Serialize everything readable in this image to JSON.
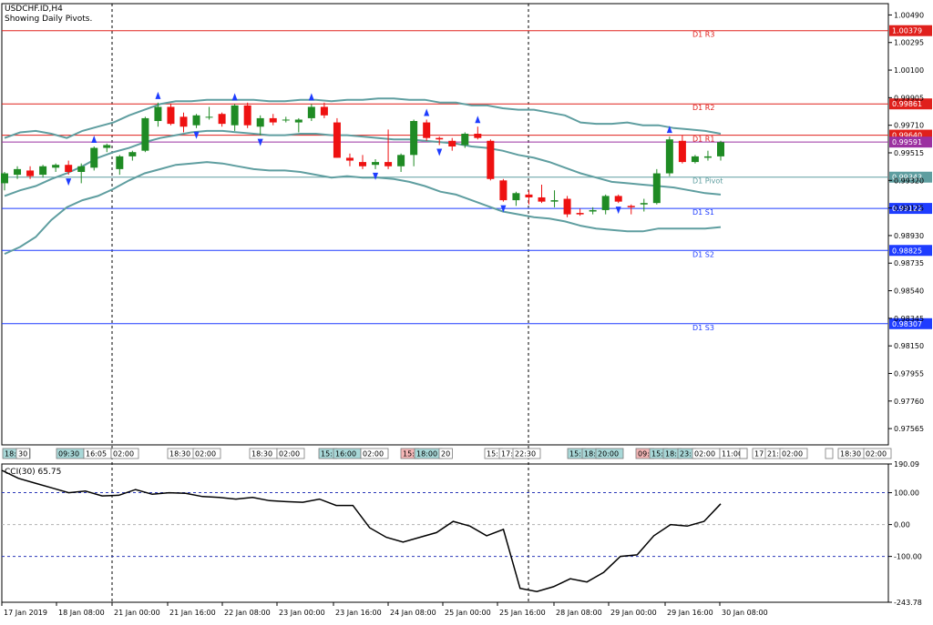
{
  "chart_data": {
    "type": "candlestick",
    "symbol_title": "USDCHF.ID,H4",
    "subtitle": "Showing Daily Pivots.",
    "price_axis_ticks": [
      "1.00490",
      "1.00295",
      "1.00100",
      "0.99905",
      "0.99710",
      "0.99515",
      "0.99320",
      "0.99125",
      "0.98930",
      "0.98735",
      "0.98540",
      "0.98345",
      "0.98150",
      "0.97955",
      "0.97760",
      "0.97565"
    ],
    "price_ylim": [
      0.9745,
      1.0057
    ],
    "pivots": [
      {
        "name": "D1 R3",
        "price": 1.00379,
        "label": "1.00379",
        "color": "#e0201c"
      },
      {
        "name": "D1 R2",
        "price": 0.99861,
        "label": "0.99861",
        "color": "#e0201c"
      },
      {
        "name": "D1 R1",
        "price": 0.9964,
        "label": "0.99640",
        "color": "#e0201c"
      },
      {
        "name": "D1 Pivot",
        "price": 0.99343,
        "label": "0.99343",
        "color": "#5f9ea0"
      },
      {
        "name": "D1 S1",
        "price": 0.99122,
        "label": "0.99122",
        "color": "#1e3cff"
      },
      {
        "name": "D1 S2",
        "price": 0.98825,
        "label": "0.98825",
        "color": "#1e3cff"
      },
      {
        "name": "D1 S3",
        "price": 0.98307,
        "label": "0.98307",
        "color": "#1e3cff"
      }
    ],
    "current_price": {
      "price": 0.99591,
      "label": "0.99591",
      "color": "#9b30a0"
    },
    "candles": [
      {
        "o": 0.993,
        "h": 0.9938,
        "l": 0.9925,
        "c": 0.9937
      },
      {
        "o": 0.9936,
        "h": 0.9942,
        "l": 0.9933,
        "c": 0.994
      },
      {
        "o": 0.9939,
        "h": 0.9942,
        "l": 0.9933,
        "c": 0.9935
      },
      {
        "o": 0.9936,
        "h": 0.9943,
        "l": 0.9934,
        "c": 0.9942
      },
      {
        "o": 0.9941,
        "h": 0.9944,
        "l": 0.9938,
        "c": 0.9943
      },
      {
        "o": 0.9943,
        "h": 0.9946,
        "l": 0.9936,
        "c": 0.9938
      },
      {
        "o": 0.9938,
        "h": 0.9944,
        "l": 0.993,
        "c": 0.9942
      },
      {
        "o": 0.9941,
        "h": 0.9956,
        "l": 0.9939,
        "c": 0.9955
      },
      {
        "o": 0.9955,
        "h": 0.9958,
        "l": 0.9952,
        "c": 0.9957
      },
      {
        "o": 0.994,
        "h": 0.995,
        "l": 0.9936,
        "c": 0.9949
      },
      {
        "o": 0.9949,
        "h": 0.9953,
        "l": 0.9946,
        "c": 0.9952
      },
      {
        "o": 0.9953,
        "h": 0.9977,
        "l": 0.9952,
        "c": 0.9976
      },
      {
        "o": 0.9974,
        "h": 0.9987,
        "l": 0.997,
        "c": 0.9984
      },
      {
        "o": 0.9984,
        "h": 0.9986,
        "l": 0.9971,
        "c": 0.9972
      },
      {
        "o": 0.9977,
        "h": 0.998,
        "l": 0.9966,
        "c": 0.997
      },
      {
        "o": 0.9971,
        "h": 0.9979,
        "l": 0.9969,
        "c": 0.9978
      },
      {
        "o": 0.9977,
        "h": 0.9984,
        "l": 0.9975,
        "c": 0.9977
      },
      {
        "o": 0.9979,
        "h": 0.998,
        "l": 0.997,
        "c": 0.9972
      },
      {
        "o": 0.9971,
        "h": 0.9986,
        "l": 0.9967,
        "c": 0.9985
      },
      {
        "o": 0.9985,
        "h": 0.9987,
        "l": 0.9969,
        "c": 0.9971
      },
      {
        "o": 0.997,
        "h": 0.9978,
        "l": 0.9964,
        "c": 0.9976
      },
      {
        "o": 0.9976,
        "h": 0.9979,
        "l": 0.9971,
        "c": 0.9973
      },
      {
        "o": 0.9975,
        "h": 0.9977,
        "l": 0.9973,
        "c": 0.9975
      },
      {
        "o": 0.9973,
        "h": 0.9976,
        "l": 0.9966,
        "c": 0.9975
      },
      {
        "o": 0.9976,
        "h": 0.9986,
        "l": 0.9974,
        "c": 0.9984
      },
      {
        "o": 0.9984,
        "h": 0.9987,
        "l": 0.9976,
        "c": 0.9978
      },
      {
        "o": 0.9973,
        "h": 0.9976,
        "l": 0.9948,
        "c": 0.9948
      },
      {
        "o": 0.9948,
        "h": 0.9951,
        "l": 0.9942,
        "c": 0.9946
      },
      {
        "o": 0.9945,
        "h": 0.995,
        "l": 0.994,
        "c": 0.9942
      },
      {
        "o": 0.9943,
        "h": 0.9947,
        "l": 0.994,
        "c": 0.9945
      },
      {
        "o": 0.9945,
        "h": 0.9968,
        "l": 0.994,
        "c": 0.9942
      },
      {
        "o": 0.9942,
        "h": 0.9951,
        "l": 0.9938,
        "c": 0.995
      },
      {
        "o": 0.995,
        "h": 0.9975,
        "l": 0.9942,
        "c": 0.9974
      },
      {
        "o": 0.9973,
        "h": 0.9975,
        "l": 0.996,
        "c": 0.9962
      },
      {
        "o": 0.9962,
        "h": 0.9963,
        "l": 0.9957,
        "c": 0.9961
      },
      {
        "o": 0.996,
        "h": 0.9962,
        "l": 0.9953,
        "c": 0.9956
      },
      {
        "o": 0.9957,
        "h": 0.9966,
        "l": 0.9955,
        "c": 0.9965
      },
      {
        "o": 0.9965,
        "h": 0.997,
        "l": 0.9961,
        "c": 0.9962
      },
      {
        "o": 0.996,
        "h": 0.9961,
        "l": 0.9932,
        "c": 0.9933
      },
      {
        "o": 0.9932,
        "h": 0.9933,
        "l": 0.9917,
        "c": 0.9918
      },
      {
        "o": 0.9918,
        "h": 0.9924,
        "l": 0.9914,
        "c": 0.9923
      },
      {
        "o": 0.9922,
        "h": 0.9925,
        "l": 0.9915,
        "c": 0.992
      },
      {
        "o": 0.992,
        "h": 0.9929,
        "l": 0.9916,
        "c": 0.9917
      },
      {
        "o": 0.9917,
        "h": 0.9925,
        "l": 0.9913,
        "c": 0.9918
      },
      {
        "o": 0.9919,
        "h": 0.9921,
        "l": 0.9906,
        "c": 0.9908
      },
      {
        "o": 0.9909,
        "h": 0.9912,
        "l": 0.9907,
        "c": 0.9908
      },
      {
        "o": 0.991,
        "h": 0.9913,
        "l": 0.9908,
        "c": 0.9911
      },
      {
        "o": 0.9911,
        "h": 0.9922,
        "l": 0.9908,
        "c": 0.9921
      },
      {
        "o": 0.9921,
        "h": 0.9922,
        "l": 0.9916,
        "c": 0.9917
      },
      {
        "o": 0.9914,
        "h": 0.9915,
        "l": 0.9908,
        "c": 0.9913
      },
      {
        "o": 0.9915,
        "h": 0.9919,
        "l": 0.991,
        "c": 0.9916
      },
      {
        "o": 0.9916,
        "h": 0.994,
        "l": 0.9915,
        "c": 0.9937
      },
      {
        "o": 0.9937,
        "h": 0.9963,
        "l": 0.9935,
        "c": 0.9961
      },
      {
        "o": 0.996,
        "h": 0.9964,
        "l": 0.9944,
        "c": 0.9945
      },
      {
        "o": 0.9945,
        "h": 0.995,
        "l": 0.9944,
        "c": 0.9949
      },
      {
        "o": 0.9948,
        "h": 0.9953,
        "l": 0.9946,
        "c": 0.9949
      },
      {
        "o": 0.9949,
        "h": 0.996,
        "l": 0.9946,
        "c": 0.9959
      }
    ],
    "bollinger_upper": [
      0.9962,
      0.9966,
      0.9967,
      0.9965,
      0.9962,
      0.9967,
      0.997,
      0.9973,
      0.9978,
      0.9982,
      0.9986,
      0.9988,
      0.9988,
      0.9989,
      0.9989,
      0.9989,
      0.9989,
      0.9988,
      0.9988,
      0.9989,
      0.9989,
      0.9988,
      0.9989,
      0.9989,
      0.999,
      0.999,
      0.9989,
      0.9989,
      0.9987,
      0.9987,
      0.9985,
      0.9985,
      0.9983,
      0.9982,
      0.9982,
      0.998,
      0.9978,
      0.9973,
      0.9972,
      0.9972,
      0.9973,
      0.9971,
      0.9971,
      0.9969,
      0.9968,
      0.9967,
      0.9965
    ],
    "bollinger_middle": [
      0.9921,
      0.9925,
      0.9928,
      0.9933,
      0.9937,
      0.9942,
      0.9948,
      0.9952,
      0.9955,
      0.9959,
      0.9962,
      0.9964,
      0.9966,
      0.9967,
      0.9967,
      0.9966,
      0.9965,
      0.9964,
      0.9964,
      0.9965,
      0.9965,
      0.9964,
      0.9964,
      0.9963,
      0.9962,
      0.9961,
      0.9961,
      0.996,
      0.9959,
      0.9958,
      0.9956,
      0.9955,
      0.9953,
      0.995,
      0.9948,
      0.9945,
      0.9941,
      0.9937,
      0.9934,
      0.9931,
      0.993,
      0.9929,
      0.9928,
      0.9927,
      0.9925,
      0.9923,
      0.9922
    ],
    "bollinger_lower": [
      0.988,
      0.9885,
      0.9892,
      0.9904,
      0.9913,
      0.9918,
      0.9921,
      0.9926,
      0.9932,
      0.9937,
      0.994,
      0.9943,
      0.9944,
      0.9945,
      0.9944,
      0.9942,
      0.994,
      0.9939,
      0.9939,
      0.9938,
      0.9936,
      0.9934,
      0.9935,
      0.9934,
      0.9934,
      0.9933,
      0.9931,
      0.9928,
      0.9924,
      0.9922,
      0.9918,
      0.9914,
      0.991,
      0.9908,
      0.9906,
      0.9905,
      0.9903,
      0.99,
      0.9898,
      0.9897,
      0.9896,
      0.9896,
      0.9898,
      0.9898,
      0.9898,
      0.9898,
      0.9899
    ],
    "time_tags": [
      {
        "text": "18:30",
        "style": "teal"
      },
      {
        "text": "30",
        "style": "plain"
      },
      {
        "text": "09:30",
        "style": "teal"
      },
      {
        "text": "16:05",
        "style": "plain"
      },
      {
        "text": "02:00",
        "style": "plain"
      },
      {
        "text": "18:30",
        "style": "plain"
      },
      {
        "text": "02:00",
        "style": "plain"
      },
      {
        "text": "18:30",
        "style": "plain"
      },
      {
        "text": "02:00",
        "style": "plain"
      },
      {
        "text": "15:",
        "style": "teal"
      },
      {
        "text": "16:00",
        "style": "teal"
      },
      {
        "text": "02:00",
        "style": "plain"
      },
      {
        "text": "15:",
        "style": "red"
      },
      {
        "text": "18:00",
        "style": "teal"
      },
      {
        "text": "20",
        "style": "plain"
      },
      {
        "text": "15:",
        "style": "plain"
      },
      {
        "text": "17:",
        "style": "plain"
      },
      {
        "text": "22:30",
        "style": "plain"
      },
      {
        "text": "15:",
        "style": "teal"
      },
      {
        "text": "18:",
        "style": "teal"
      },
      {
        "text": "20:00",
        "style": "teal"
      },
      {
        "text": "09:",
        "style": "red"
      },
      {
        "text": "15:",
        "style": "teal"
      },
      {
        "text": "18:",
        "style": "teal"
      },
      {
        "text": "23:",
        "style": "teal"
      },
      {
        "text": "02:00",
        "style": "plain"
      },
      {
        "text": "11:00",
        "style": "plain"
      },
      {
        "text": "",
        "style": "plain"
      },
      {
        "text": "17",
        "style": "plain"
      },
      {
        "text": "21:",
        "style": "plain"
      },
      {
        "text": "02:00",
        "style": "plain"
      },
      {
        "text": "",
        "style": "plain"
      },
      {
        "text": "18:30",
        "style": "plain"
      },
      {
        "text": "02:00",
        "style": "plain"
      }
    ],
    "cci": {
      "label": "CCI(30) 65.75",
      "axis_ticks": [
        "190.09",
        "100.00",
        "0.00",
        "-100.00",
        "-243.78"
      ],
      "ylim": [
        -243.78,
        190.09
      ],
      "levels": [
        100,
        0,
        -100
      ],
      "values": [
        170,
        145,
        130,
        115,
        100,
        105,
        90,
        92,
        110,
        95,
        100,
        98,
        88,
        85,
        80,
        85,
        75,
        72,
        70,
        80,
        60,
        60,
        -10,
        -40,
        -55,
        -40,
        -25,
        10,
        -5,
        -35,
        -15,
        -200,
        -210,
        -195,
        -170,
        -180,
        -150,
        -100,
        -95,
        -35,
        0,
        -5,
        10,
        65
      ]
    },
    "date_axis": [
      "17 Jan 2019",
      "18 Jan 08:00",
      "21 Jan 00:00",
      "21 Jan 16:00",
      "22 Jan 08:00",
      "23 Jan 00:00",
      "23 Jan 16:00",
      "24 Jan 08:00",
      "25 Jan 00:00",
      "25 Jan 16:00",
      "28 Jan 08:00",
      "29 Jan 00:00",
      "29 Jan 16:00",
      "30 Jan 08:00"
    ],
    "colors": {
      "bull": "#1f8b24",
      "bear": "#ee1111",
      "band": "#5f9ea0",
      "cci_line": "#000000",
      "cci_level": "#2a37b8",
      "arrow": "#1e3cff"
    }
  }
}
